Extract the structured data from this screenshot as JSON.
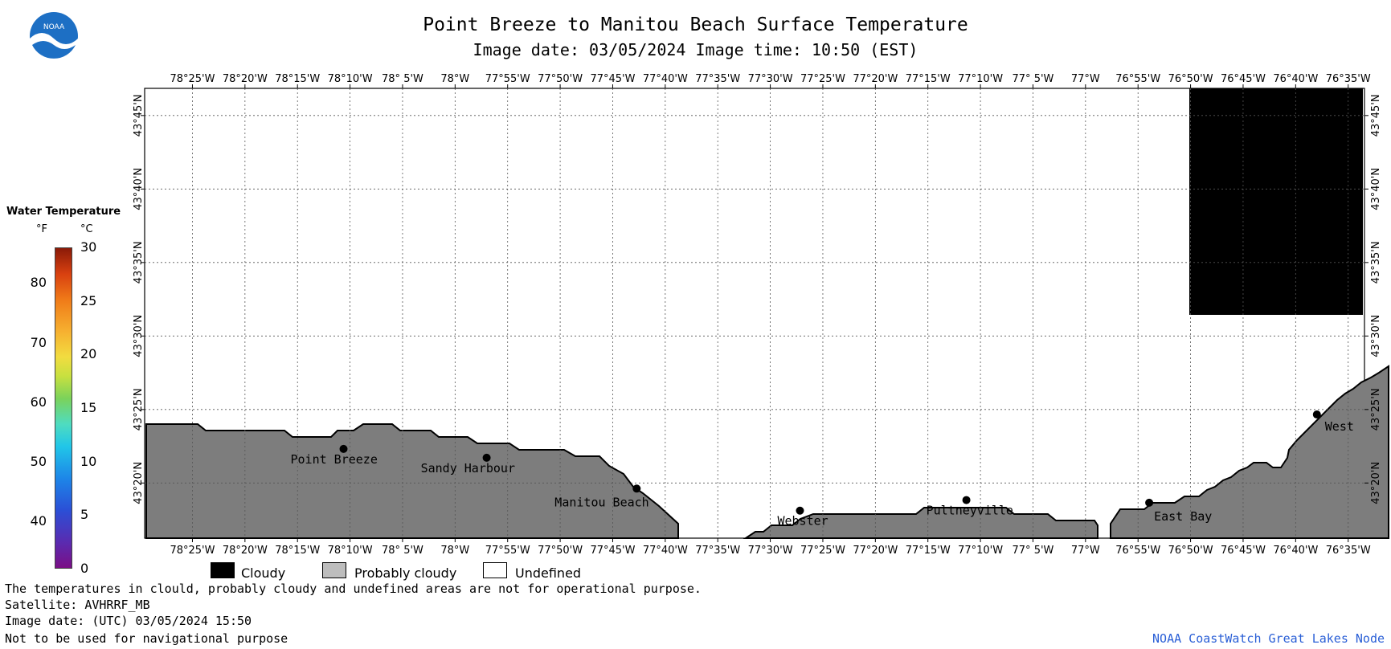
{
  "title": "Point Breeze to Manitou Beach Surface Temperature",
  "subtitle": "Image date: 03/05/2024     Image time: 10:50 (EST)",
  "logo_text": "NOAA",
  "lon_labels": [
    "78°25'W",
    "78°20'W",
    "78°15'W",
    "78°10'W",
    "78° 5'W",
    "78°W",
    "77°55'W",
    "77°50'W",
    "77°45'W",
    "77°40'W",
    "77°35'W",
    "77°30'W",
    "77°25'W",
    "77°20'W",
    "77°15'W",
    "77°10'W",
    "77° 5'W",
    "77°W",
    "76°55'W",
    "76°50'W",
    "76°45'W",
    "76°40'W",
    "76°35'W"
  ],
  "lat_labels": [
    "43°45'N",
    "43°40'N",
    "43°35'N",
    "43°30'N",
    "43°25'N",
    "43°20'N"
  ],
  "places": [
    {
      "name": "Point Breeze",
      "lon": -78.177,
      "lat": 43.372
    },
    {
      "name": "Sandy Harbour",
      "lon": -77.95,
      "lat": 43.362
    },
    {
      "name": "Manitou Beach",
      "lon": -77.712,
      "lat": 43.327
    },
    {
      "name": "Webster",
      "lon": -77.453,
      "lat": 43.302
    },
    {
      "name": "Pultneyville",
      "lon": -77.189,
      "lat": 43.314
    },
    {
      "name": "East Bay",
      "lon": -76.899,
      "lat": 43.311
    },
    {
      "name": "West",
      "lon": -76.633,
      "lat": 43.411
    }
  ],
  "legend": {
    "title": "Water Temperature",
    "unit_f": "°F",
    "unit_c": "°C",
    "f_ticks": [
      "80",
      "70",
      "60",
      "50",
      "40"
    ],
    "c_ticks": [
      "30",
      "25",
      "20",
      "15",
      "10",
      "5",
      "0"
    ],
    "colors": {
      "cloudy": "#000000",
      "probably_cloudy": "#bdbdbd",
      "undefined": "#ffffff",
      "land": "#7d7d7d"
    }
  },
  "key": {
    "cloudy": "Cloudy",
    "probably_cloudy": "Probably cloudy",
    "undefined": "Undefined"
  },
  "footer": {
    "line1": "The temperatures in clould, probably cloudy and undefined areas are not for operational purpose.",
    "line2": "Satellite: AVHRRF_MB",
    "line3": "Image date: (UTC) 03/05/2024  15:50",
    "line4": "Not to be used for navigational purpose"
  },
  "credit": "NOAA CoastWatch Great Lakes Node"
}
